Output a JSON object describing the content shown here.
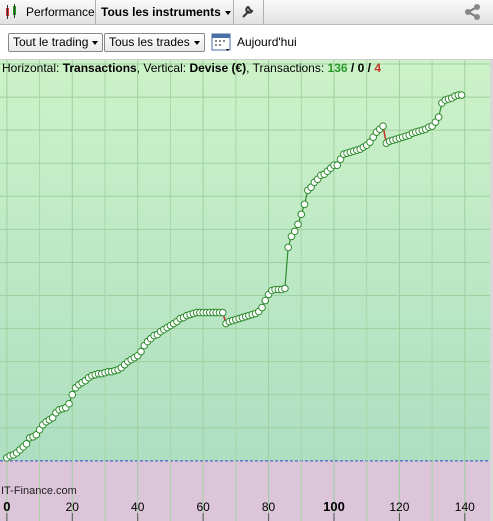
{
  "toolbar": {
    "tab": "Performance",
    "dropdown": "Tous les instruments"
  },
  "filters": {
    "trading": "Tout le trading",
    "trades": "Tous les trades",
    "date": "Aujourd'hui"
  },
  "chart_data": {
    "type": "line",
    "header": {
      "x_prefix": "Horizontal:",
      "x_label": "Transactions",
      "y_prefix": ", Vertical:",
      "y_label": "Devise (€)",
      "count_prefix": ", Transactions:",
      "counts": [
        136,
        0,
        4
      ],
      "count_separator": "/"
    },
    "watermark": "IT-Finance.com",
    "values": [
      3,
      5,
      6,
      8,
      11,
      14,
      17,
      23,
      24,
      26,
      31,
      36,
      39,
      41,
      43,
      48,
      51,
      52,
      53,
      57,
      66,
      73,
      76,
      78,
      80,
      83,
      85,
      86,
      87,
      87,
      88,
      89,
      89,
      90,
      91,
      93,
      96,
      99,
      101,
      103,
      105,
      109,
      115,
      119,
      122,
      125,
      126,
      129,
      131,
      133,
      135,
      137,
      139,
      142,
      143,
      145,
      146,
      147,
      148,
      148,
      148,
      148,
      148,
      148,
      148,
      148,
      148,
      137,
      139,
      140,
      141,
      142,
      143,
      144,
      145,
      146,
      147,
      149,
      153,
      160,
      166,
      170,
      171,
      171,
      171,
      172,
      213,
      224,
      229,
      236,
      246,
      256,
      270,
      273,
      278,
      281,
      285,
      286,
      289,
      292,
      295,
      295,
      301,
      306,
      307,
      308,
      309,
      310,
      311,
      313,
      315,
      318,
      323,
      328,
      331,
      334,
      317,
      319,
      320,
      321,
      322,
      323,
      324,
      325,
      327,
      328,
      329,
      330,
      331,
      333,
      334,
      338,
      343,
      357,
      360,
      361,
      362,
      364,
      365,
      365
    ],
    "color": "#2e8b2e",
    "loss_color": "#c0392b",
    "xlim": [
      -2.1,
      147.7
    ],
    "xticks": [
      0,
      20,
      40,
      60,
      80,
      100,
      120,
      140
    ],
    "ylim": [
      -60,
      400
    ],
    "yticks": [
      0,
      33,
      66,
      99,
      132,
      165,
      198,
      231,
      264,
      297,
      330,
      363,
      396
    ],
    "grid": true
  }
}
